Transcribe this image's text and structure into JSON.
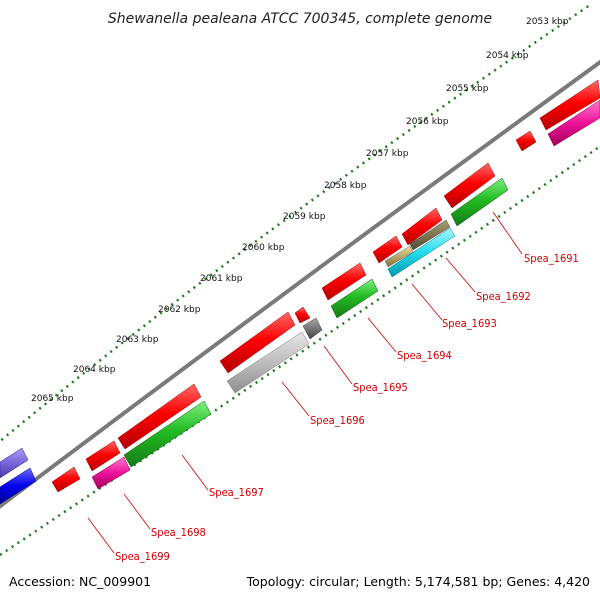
{
  "title": "Shewanella pealeana ATCC 700345, complete genome",
  "footer": {
    "accession": "Accession: NC_009901",
    "summary": "Topology: circular; Length: 5,174,581 bp; Genes: 4,420"
  },
  "kbp_labels": [
    "2053 kbp",
    "2054 kbp",
    "2055 kbp",
    "2056 kbp",
    "2057 kbp",
    "2058 kbp",
    "2059 kbp",
    "2060 kbp",
    "2061 kbp",
    "2062 kbp",
    "2063 kbp",
    "2064 kbp",
    "2065 kbp"
  ],
  "genes": [
    "Spea_1691",
    "Spea_1692",
    "Spea_1693",
    "Spea_1694",
    "Spea_1695",
    "Spea_1696",
    "Spea_1697",
    "Spea_1698",
    "Spea_1699"
  ],
  "colors": {
    "backbone": "#7a7a7a",
    "ticks": "#1a7a1a",
    "cds_forward": "#ee0000",
    "cds_reverse": "#22bb22",
    "gray_feature": "#bbbbbb",
    "magenta_feature": "#ee1199",
    "label_red": "#cc0000"
  }
}
